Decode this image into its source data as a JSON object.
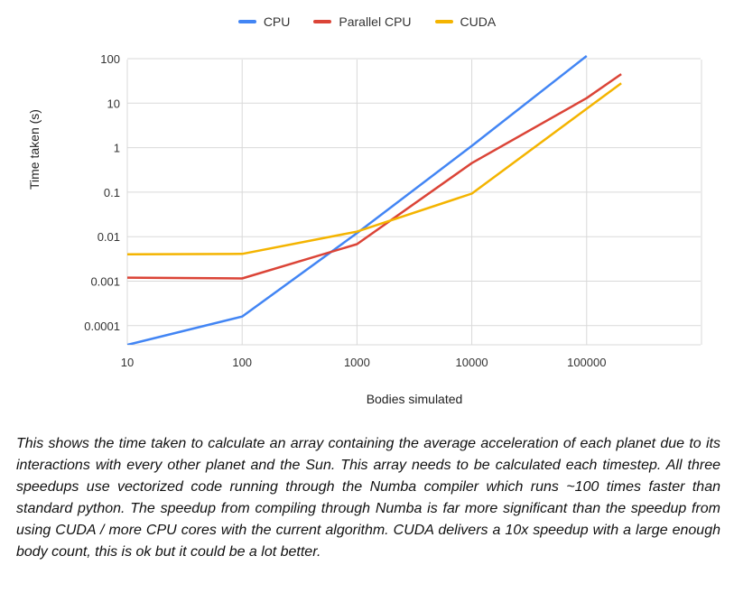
{
  "chart_data": {
    "type": "line",
    "title": "",
    "xlabel": "Bodies simulated",
    "ylabel": "Time taken (s)",
    "x_scale": "log",
    "y_scale": "log",
    "x_ticks": [
      "10",
      "100",
      "1000",
      "10000",
      "100000"
    ],
    "y_ticks": [
      "100",
      "10",
      "1",
      "0.1",
      "0.01",
      "0.001",
      "0.0001"
    ],
    "xlim": [
      10,
      1000000
    ],
    "ylim": [
      3.5e-05,
      130
    ],
    "legend_position": "top",
    "grid": true,
    "series": [
      {
        "name": "CPU",
        "color": "#4285f4",
        "points": [
          [
            10,
            3.7e-05
          ],
          [
            100,
            0.00016
          ],
          [
            1000,
            0.012
          ],
          [
            10000,
            1.1
          ],
          [
            100000,
            115
          ]
        ]
      },
      {
        "name": "Parallel CPU",
        "color": "#db4437",
        "points": [
          [
            10,
            0.0012
          ],
          [
            100,
            0.00115
          ],
          [
            1000,
            0.0068
          ],
          [
            10000,
            0.45
          ],
          [
            100000,
            13
          ],
          [
            200000,
            45
          ]
        ]
      },
      {
        "name": "CUDA",
        "color": "#f4b400",
        "points": [
          [
            10,
            0.004
          ],
          [
            100,
            0.0041
          ],
          [
            1000,
            0.013
          ],
          [
            10000,
            0.093
          ],
          [
            100000,
            7.5
          ],
          [
            200000,
            28
          ]
        ]
      }
    ]
  },
  "caption": "This shows the time taken to calculate an array containing the average acceleration of each planet due to its interactions with every other planet and the Sun. This array needs to be calculated each timestep. All three speedups use vectorized code running through the Numba compiler which runs ~100 times faster than standard python. The speedup from compiling through Numba is far more significant than the speedup from using CUDA / more CPU cores with the current algorithm. CUDA delivers a 10x speedup with a large enough body count, this is ok but it could be a lot better."
}
